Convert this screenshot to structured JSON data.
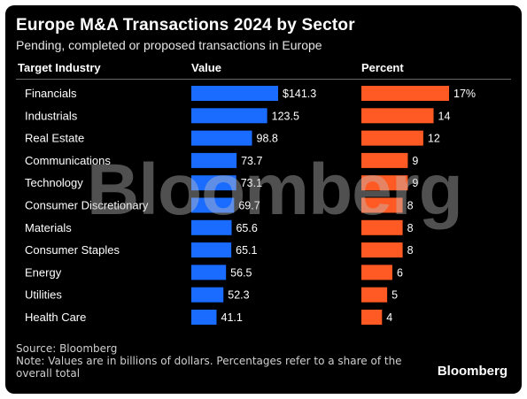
{
  "title": "Europe M&A Transactions 2024 by Sector",
  "subtitle": "Pending, completed or proposed transactions in Europe",
  "headers": {
    "industry": "Target Industry",
    "value": "Value",
    "percent": "Percent"
  },
  "watermark": "Bloomberg",
  "source": "Source: Bloomberg",
  "note": "Note: Values are in billions of dollars. Percentages refer to a share of the overall total",
  "brand": "Bloomberg",
  "colors": {
    "value_bar": "#1a6bff",
    "percent_bar": "#ff5a23",
    "background": "#000000"
  },
  "chart_data": {
    "type": "table",
    "categories": [
      "Financials",
      "Industrials",
      "Real Estate",
      "Communications",
      "Technology",
      "Consumer Discretionary",
      "Materials",
      "Consumer Staples",
      "Energy",
      "Utilities",
      "Health Care"
    ],
    "series": [
      {
        "name": "Value",
        "values": [
          141.3,
          123.5,
          98.8,
          73.7,
          73.1,
          69.7,
          65.6,
          65.1,
          56.5,
          52.3,
          41.1
        ],
        "labels": [
          "$141.3",
          "123.5",
          "98.8",
          "73.7",
          "73.1",
          "69.7",
          "65.6",
          "65.1",
          "56.5",
          "52.3",
          "41.1"
        ]
      },
      {
        "name": "Percent",
        "values": [
          17,
          14,
          12,
          9,
          9,
          8,
          8,
          8,
          6,
          5,
          4
        ],
        "labels": [
          "17%",
          "14",
          "12",
          "9",
          "9",
          "8",
          "8",
          "8",
          "6",
          "5",
          "4"
        ]
      }
    ]
  }
}
